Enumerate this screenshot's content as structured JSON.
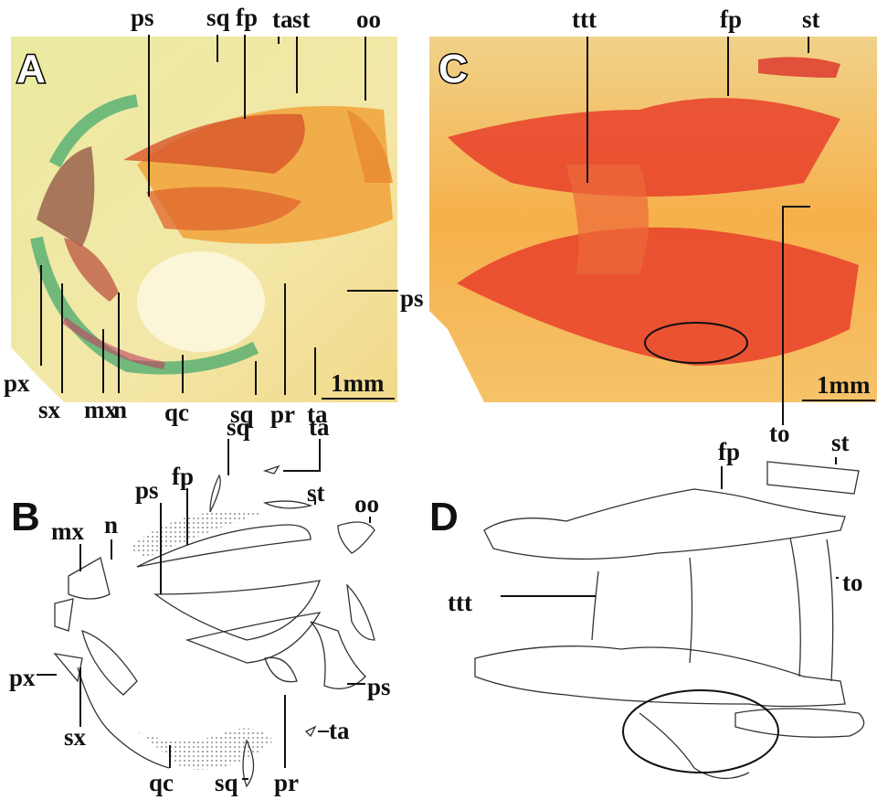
{
  "panels": [
    {
      "letter": "A",
      "labels": [
        "ps",
        "sq",
        "fp",
        "ta",
        "st",
        "oo",
        "ps",
        "px",
        "sx",
        "mx",
        "n",
        "qc",
        "sq",
        "pr",
        "ta"
      ],
      "scale": "1mm"
    },
    {
      "letter": "B",
      "labels": [
        "sq",
        "ta",
        "fp",
        "ps",
        "st",
        "oo",
        "mx",
        "n",
        "px",
        "ps",
        "sx",
        "ta",
        "qc",
        "sq",
        "pr"
      ]
    },
    {
      "letter": "C",
      "labels": [
        "ttt",
        "fp",
        "st",
        "to"
      ],
      "scale": "1mm"
    },
    {
      "letter": "D",
      "labels": [
        "fp",
        "st",
        "ttt",
        "to"
      ]
    }
  ]
}
